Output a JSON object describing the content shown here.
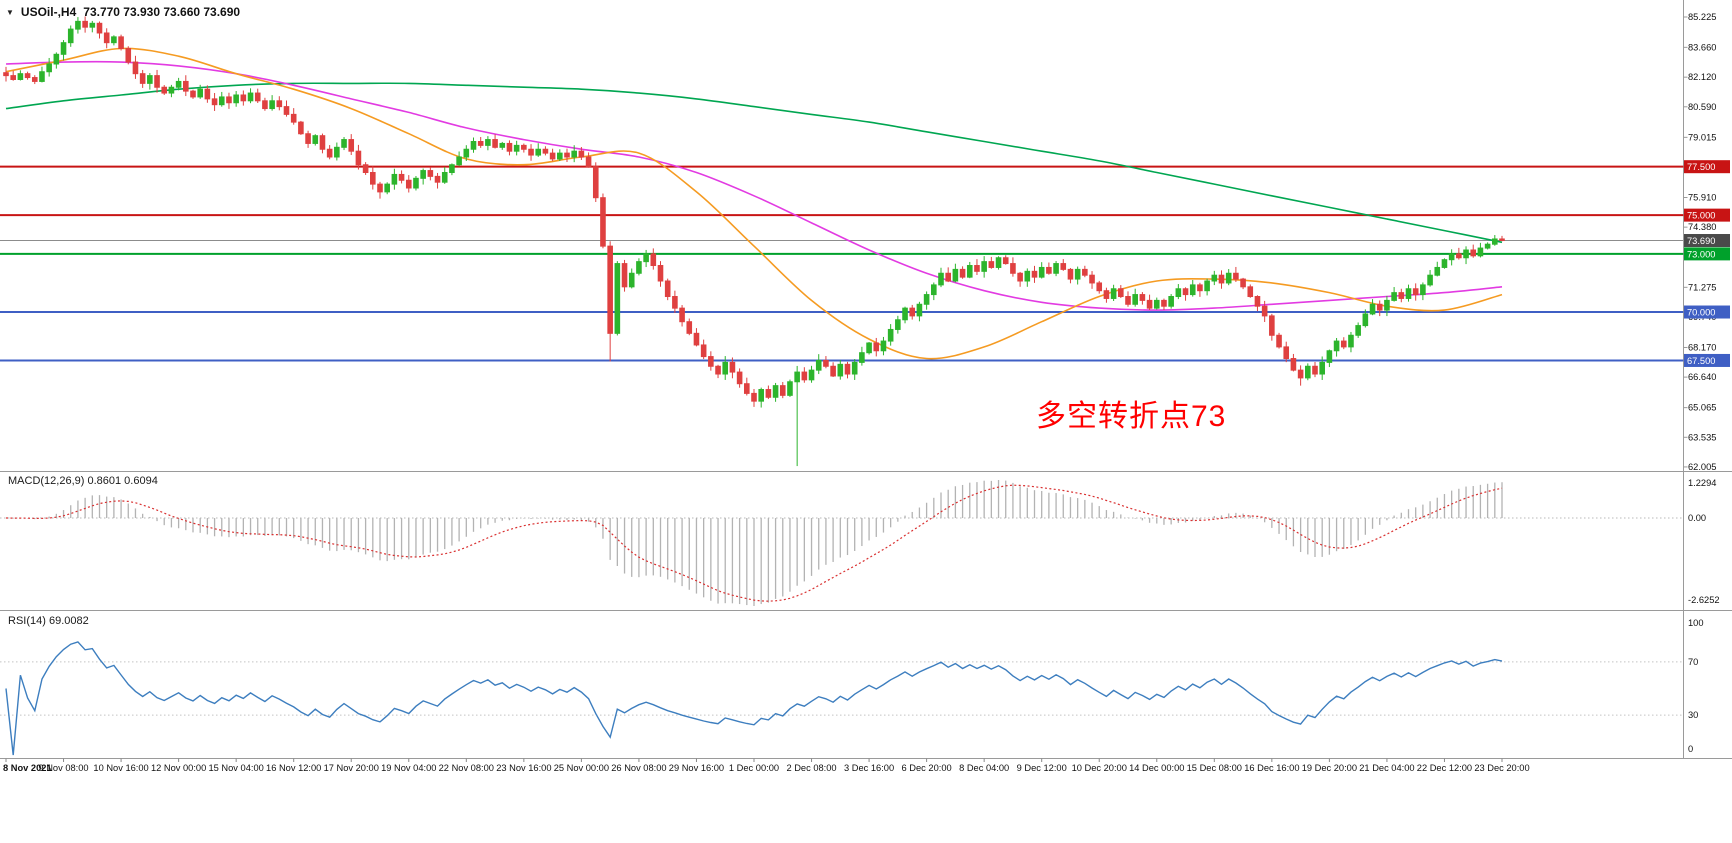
{
  "header": {
    "symbol": "USOil-,H4",
    "ohlc": "73.770 73.930 73.660 73.690"
  },
  "icons": {
    "dropdown": "▼"
  },
  "annotation": {
    "text": "多空转折点73",
    "color": "#FF0000"
  },
  "chart_data": {
    "type": "candlestick",
    "title": "USOil- H4 chart with MACD and RSI panels",
    "timeframe": "H4",
    "bars_per_label": 8,
    "time_labels": [
      "8 Nov 2021",
      "9 Nov 08:00",
      "10 Nov 16:00",
      "12 Nov 00:00",
      "15 Nov 04:00",
      "16 Nov 12:00",
      "17 Nov 20:00",
      "19 Nov 04:00",
      "22 Nov 08:00",
      "23 Nov 16:00",
      "25 Nov 00:00",
      "26 Nov 08:00",
      "29 Nov 16:00",
      "1 Dec 00:00",
      "2 Dec 08:00",
      "3 Dec 16:00",
      "6 Dec 20:00",
      "8 Dec 04:00",
      "9 Dec 12:00",
      "10 Dec 20:00",
      "14 Dec 00:00",
      "15 Dec 08:00",
      "16 Dec 16:00",
      "19 Dec 20:00",
      "21 Dec 04:00",
      "22 Dec 12:00",
      "23 Dec 20:00"
    ],
    "closes": [
      82.2,
      82.0,
      82.3,
      82.1,
      81.9,
      82.4,
      82.8,
      83.3,
      83.9,
      84.6,
      85.0,
      84.7,
      84.9,
      84.4,
      83.9,
      84.2,
      83.6,
      82.9,
      82.3,
      81.8,
      82.2,
      81.6,
      81.3,
      81.6,
      81.9,
      81.4,
      81.1,
      81.5,
      81.0,
      80.7,
      81.1,
      80.8,
      81.2,
      80.9,
      81.3,
      80.9,
      80.5,
      80.9,
      80.6,
      80.2,
      79.8,
      79.2,
      78.7,
      79.1,
      78.4,
      78.0,
      78.5,
      78.9,
      78.3,
      77.6,
      77.2,
      76.6,
      76.2,
      76.6,
      77.1,
      76.8,
      76.4,
      76.9,
      77.3,
      77.0,
      76.7,
      77.2,
      77.6,
      78.0,
      78.4,
      78.8,
      78.6,
      78.9,
      78.5,
      78.7,
      78.3,
      78.6,
      78.4,
      78.1,
      78.4,
      78.2,
      77.9,
      78.2,
      78.0,
      78.3,
      78.0,
      77.5,
      75.9,
      73.4,
      68.9,
      72.5,
      71.3,
      72.0,
      72.6,
      73.0,
      72.4,
      71.6,
      70.8,
      70.2,
      69.5,
      68.9,
      68.3,
      67.7,
      67.2,
      66.8,
      67.4,
      66.9,
      66.3,
      65.8,
      65.4,
      66.0,
      65.6,
      66.2,
      65.7,
      66.4,
      66.9,
      66.5,
      67.0,
      67.5,
      67.2,
      66.7,
      67.3,
      66.8,
      67.4,
      67.9,
      68.4,
      68.0,
      68.5,
      69.1,
      69.6,
      70.2,
      69.8,
      70.4,
      70.9,
      71.4,
      72.0,
      71.6,
      72.2,
      71.8,
      72.4,
      72.1,
      72.6,
      72.3,
      72.8,
      72.5,
      72.0,
      71.6,
      72.1,
      71.8,
      72.3,
      72.0,
      72.5,
      72.2,
      71.7,
      72.2,
      71.9,
      71.5,
      71.1,
      70.7,
      71.2,
      70.8,
      70.4,
      70.9,
      70.6,
      70.2,
      70.6,
      70.3,
      70.8,
      71.2,
      70.9,
      71.4,
      71.1,
      71.6,
      71.9,
      71.5,
      72.0,
      71.7,
      71.3,
      70.8,
      70.3,
      69.8,
      68.8,
      68.2,
      67.6,
      67.0,
      66.6,
      67.2,
      66.8,
      67.4,
      68.0,
      68.5,
      68.2,
      68.8,
      69.3,
      69.9,
      70.4,
      70.1,
      70.6,
      71.0,
      70.7,
      71.2,
      70.9,
      71.4,
      71.9,
      72.3,
      72.7,
      73.0,
      72.8,
      73.2,
      72.9,
      73.3,
      73.5,
      73.77,
      73.69
    ],
    "wick_overrides": {
      "10": {
        "h": 85.22
      },
      "52": {
        "l": 75.85
      },
      "84": {
        "l": 67.45
      },
      "110": {
        "l": 62.05
      },
      "180": {
        "l": 66.2
      },
      "208": {
        "h": 73.93,
        "l": 73.66
      }
    },
    "candle_up_color": "#2CB42C",
    "candle_down_color": "#DF4040",
    "overlays": {
      "ma_long": {
        "name": "long moving average (green)",
        "color": "#00A651",
        "values": [
          80.5,
          80.9,
          81.2,
          81.5,
          81.7,
          81.8,
          81.8,
          81.8,
          81.7,
          81.6,
          81.5,
          81.3,
          81.0,
          80.6,
          80.2,
          79.8,
          79.3,
          78.8,
          78.3,
          77.8,
          77.2,
          76.6,
          76.0,
          75.4,
          74.8,
          74.2,
          73.6
        ]
      },
      "ma_mid": {
        "name": "medium moving average (magenta)",
        "color": "#E23BE2",
        "values": [
          82.8,
          82.9,
          82.9,
          82.7,
          82.3,
          81.7,
          81.0,
          80.3,
          79.5,
          78.9,
          78.4,
          78.0,
          77.2,
          76.0,
          74.6,
          73.2,
          72.0,
          71.1,
          70.5,
          70.2,
          70.1,
          70.2,
          70.4,
          70.6,
          70.8,
          71.0,
          71.3
        ]
      },
      "ma_fast": {
        "name": "fast moving average (orange)",
        "color": "#F59B22",
        "values": [
          82.4,
          83.0,
          83.6,
          83.2,
          82.3,
          81.5,
          80.5,
          79.2,
          77.9,
          77.6,
          78.0,
          78.2,
          76.2,
          73.4,
          70.6,
          68.6,
          67.6,
          68.2,
          69.5,
          70.8,
          71.6,
          71.7,
          71.5,
          71.0,
          70.3,
          70.1,
          70.9
        ]
      }
    },
    "h_lines": [
      {
        "price": 77.5,
        "color": "#C81414",
        "width": 2
      },
      {
        "price": 75.0,
        "color": "#C81414",
        "width": 2
      },
      {
        "price": 73.69,
        "color": "#8C8C8C",
        "width": 1
      },
      {
        "price": 73.0,
        "color": "#00A12B",
        "width": 2
      },
      {
        "price": 70.0,
        "color": "#3F5FC4",
        "width": 2
      },
      {
        "price": 67.5,
        "color": "#3F5FC4",
        "width": 2
      }
    ],
    "price_axis": {
      "ticks": [
        "85.225",
        "83.660",
        "82.120",
        "80.590",
        "79.015",
        "75.910",
        "74.380",
        "71.275",
        "69.740",
        "68.170",
        "66.640",
        "65.065",
        "63.535",
        "62.005"
      ],
      "badges": [
        {
          "text": "77.500",
          "price": 77.5,
          "color": "#C81414"
        },
        {
          "text": "75.000",
          "price": 75.0,
          "color": "#C81414"
        },
        {
          "text": "73.690",
          "price": 73.69,
          "color": "#4A4A4A"
        },
        {
          "text": "73.000",
          "price": 73.0,
          "color": "#00A12B"
        },
        {
          "text": "70.000",
          "price": 70.0,
          "color": "#3F5FC4"
        },
        {
          "text": "67.500",
          "price": 67.5,
          "color": "#3F5FC4"
        }
      ]
    },
    "sub_panels": [
      {
        "name": "macd",
        "label": "MACD(12,26,9) 0.8601 0.6094",
        "fast": 12,
        "slow": 26,
        "signal": 9,
        "axis": [
          "1.2294",
          "0.00",
          "-2.6252"
        ],
        "histogram_color": "#B3B3B3",
        "signal_color": "#D93030"
      },
      {
        "name": "rsi",
        "label": "RSI(14) 69.0082",
        "period": 14,
        "levels": [
          70,
          30
        ],
        "axis": [
          "100",
          "70",
          "30",
          "0"
        ],
        "line_color": "#3D7EBF"
      }
    ]
  }
}
